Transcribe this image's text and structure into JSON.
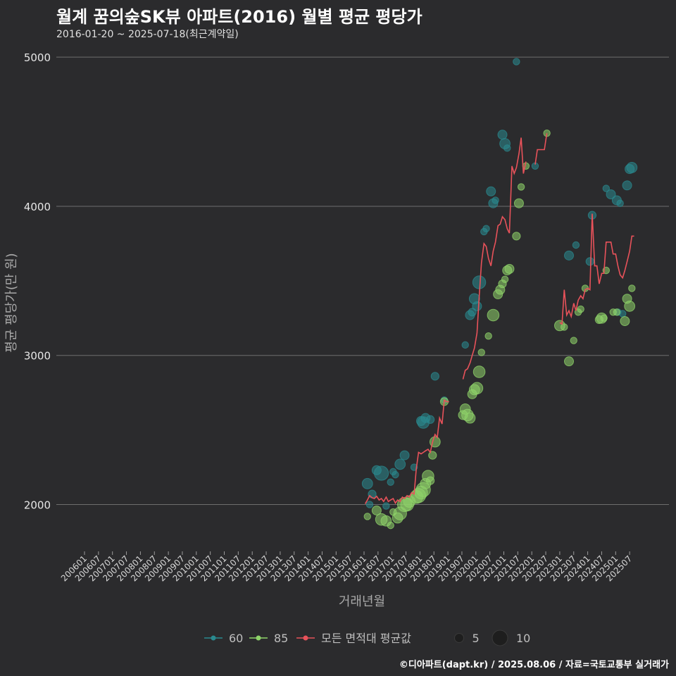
{
  "header": {
    "title": "월계 꿈의숲SK뷰 아파트(2016) 월별 평균 평당가",
    "subtitle": "2016-01-20 ~ 2025-07-18(최근계약일)"
  },
  "caption": "©디아파트(dapt.kr) / 2025.08.06 / 자료=국토교통부 실거래가",
  "colors": {
    "s60": "#2a8a8f",
    "s85": "#8fd46a",
    "avg": "#e8525a"
  },
  "chart_data": {
    "type": "line+scatter",
    "xlabel": "거래년월",
    "ylabel": "평균 평당가(만 원)",
    "ylim": [
      1700,
      5100
    ],
    "yticks": [
      2000,
      3000,
      4000,
      5000
    ],
    "xticks": [
      "200601",
      "200607",
      "200701",
      "200707",
      "200801",
      "200807",
      "200901",
      "200907",
      "201001",
      "201007",
      "201101",
      "201107",
      "201201",
      "201207",
      "201301",
      "201307",
      "201401",
      "201407",
      "201501",
      "201507",
      "201601",
      "201607",
      "201701",
      "201707",
      "201801",
      "201807",
      "201901",
      "201907",
      "202001",
      "202007",
      "202101",
      "202107",
      "202201",
      "202207",
      "202301",
      "202307",
      "202401",
      "202407",
      "202501",
      "202507"
    ],
    "legend": {
      "series": [
        {
          "key": "s60",
          "label": "60"
        },
        {
          "key": "s85",
          "label": "85"
        },
        {
          "key": "avg",
          "label": "모든 면적대 평균값"
        }
      ],
      "sizes": [
        {
          "label": "5",
          "size": 5
        },
        {
          "label": "10",
          "size": 10
        }
      ]
    },
    "average_line": [
      [
        [
          2016.04,
          2005
        ],
        [
          2016.12,
          2030
        ],
        [
          2016.2,
          2060
        ],
        [
          2016.29,
          2045
        ],
        [
          2016.37,
          2040
        ],
        [
          2016.45,
          2055
        ],
        [
          2016.54,
          2030
        ],
        [
          2016.62,
          2040
        ],
        [
          2016.7,
          2020
        ],
        [
          2016.79,
          2050
        ],
        [
          2016.87,
          2020
        ],
        [
          2016.95,
          2030
        ],
        [
          2017.04,
          2040
        ],
        [
          2017.12,
          2010
        ],
        [
          2017.2,
          2030
        ],
        [
          2017.29,
          2020
        ],
        [
          2017.37,
          2050
        ],
        [
          2017.45,
          2040
        ],
        [
          2017.54,
          2060
        ],
        [
          2017.62,
          2050
        ],
        [
          2017.7,
          2080
        ],
        [
          2017.79,
          2070
        ],
        [
          2017.87,
          2240
        ],
        [
          2017.95,
          2350
        ],
        [
          2018.04,
          2340
        ],
        [
          2018.12,
          2350
        ],
        [
          2018.2,
          2360
        ],
        [
          2018.29,
          2370
        ],
        [
          2018.37,
          2350
        ],
        [
          2018.45,
          2420
        ],
        [
          2018.54,
          2470
        ],
        [
          2018.62,
          2450
        ],
        [
          2018.7,
          2580
        ],
        [
          2018.79,
          2540
        ],
        [
          2018.87,
          2700
        ],
        [
          2018.95,
          2690
        ],
        [
          2019.04,
          2690
        ]
      ],
      [
        [
          2019.54,
          2840
        ],
        [
          2019.62,
          2900
        ],
        [
          2019.7,
          2910
        ],
        [
          2019.79,
          2950
        ],
        [
          2019.87,
          3000
        ],
        [
          2019.95,
          3050
        ],
        [
          2020.04,
          3150
        ],
        [
          2020.12,
          3400
        ],
        [
          2020.2,
          3620
        ],
        [
          2020.29,
          3750
        ],
        [
          2020.37,
          3730
        ],
        [
          2020.45,
          3650
        ],
        [
          2020.54,
          3600
        ],
        [
          2020.62,
          3700
        ],
        [
          2020.7,
          3760
        ],
        [
          2020.79,
          3870
        ],
        [
          2020.87,
          3880
        ],
        [
          2020.95,
          3930
        ],
        [
          2021.04,
          3910
        ],
        [
          2021.12,
          3850
        ],
        [
          2021.2,
          3820
        ],
        [
          2021.29,
          4270
        ],
        [
          2021.37,
          4220
        ],
        [
          2021.45,
          4260
        ],
        [
          2021.54,
          4350
        ],
        [
          2021.62,
          4460
        ],
        [
          2021.7,
          4220
        ],
        [
          2021.79,
          4300
        ]
      ],
      [
        [
          2022.12,
          4280
        ],
        [
          2022.2,
          4380
        ],
        [
          2022.29,
          4380
        ],
        [
          2022.37,
          4380
        ],
        [
          2022.45,
          4380
        ],
        [
          2022.54,
          4490
        ]
      ],
      [
        [
          2023.0,
          3220
        ],
        [
          2023.08,
          3210
        ],
        [
          2023.16,
          3440
        ],
        [
          2023.25,
          3270
        ],
        [
          2023.33,
          3300
        ],
        [
          2023.41,
          3260
        ],
        [
          2023.5,
          3350
        ],
        [
          2023.58,
          3300
        ],
        [
          2023.66,
          3370
        ],
        [
          2023.75,
          3400
        ],
        [
          2023.83,
          3380
        ],
        [
          2023.91,
          3440
        ],
        [
          2024.0,
          3450
        ],
        [
          2024.08,
          3440
        ],
        [
          2024.16,
          3950
        ],
        [
          2024.25,
          3600
        ],
        [
          2024.33,
          3600
        ],
        [
          2024.41,
          3480
        ],
        [
          2024.5,
          3550
        ],
        [
          2024.58,
          3550
        ],
        [
          2024.66,
          3760
        ],
        [
          2024.75,
          3760
        ],
        [
          2024.83,
          3760
        ],
        [
          2024.91,
          3680
        ],
        [
          2025.0,
          3680
        ],
        [
          2025.08,
          3600
        ],
        [
          2025.16,
          3540
        ],
        [
          2025.25,
          3520
        ],
        [
          2025.33,
          3570
        ],
        [
          2025.41,
          3630
        ],
        [
          2025.5,
          3700
        ],
        [
          2025.58,
          3800
        ],
        [
          2025.66,
          3800
        ]
      ]
    ],
    "points_60": [
      [
        2016.12,
        2140,
        6
      ],
      [
        2016.2,
        2000,
        3
      ],
      [
        2016.29,
        2070,
        4
      ],
      [
        2016.45,
        2230,
        5
      ],
      [
        2016.62,
        2210,
        9
      ],
      [
        2016.79,
        1990,
        3
      ],
      [
        2016.95,
        2150,
        3
      ],
      [
        2017.04,
        2220,
        3
      ],
      [
        2017.12,
        2200,
        3
      ],
      [
        2017.29,
        2270,
        6
      ],
      [
        2017.45,
        2330,
        5
      ],
      [
        2017.79,
        2250,
        3
      ],
      [
        2018.04,
        2560,
        5
      ],
      [
        2018.12,
        2550,
        7
      ],
      [
        2018.2,
        2580,
        5
      ],
      [
        2018.37,
        2570,
        4
      ],
      [
        2018.54,
        2860,
        4
      ],
      [
        2018.87,
        2700,
        3
      ],
      [
        2019.62,
        3070,
        3
      ],
      [
        2019.79,
        3270,
        5
      ],
      [
        2019.87,
        3290,
        4
      ],
      [
        2019.95,
        3380,
        6
      ],
      [
        2020.04,
        3330,
        5
      ],
      [
        2020.12,
        3490,
        8
      ],
      [
        2020.29,
        3830,
        3
      ],
      [
        2020.37,
        3850,
        3
      ],
      [
        2020.54,
        4100,
        5
      ],
      [
        2020.62,
        4020,
        5
      ],
      [
        2020.7,
        4040,
        3
      ],
      [
        2020.95,
        4480,
        5
      ],
      [
        2021.04,
        4420,
        6
      ],
      [
        2021.12,
        4390,
        3
      ],
      [
        2021.45,
        4970,
        3
      ],
      [
        2022.12,
        4270,
        3
      ],
      [
        2023.33,
        3670,
        5
      ],
      [
        2023.58,
        3740,
        3
      ],
      [
        2024.08,
        3630,
        4
      ],
      [
        2024.16,
        3940,
        4
      ],
      [
        2024.66,
        4120,
        3
      ],
      [
        2024.83,
        4080,
        5
      ],
      [
        2025.04,
        4040,
        5
      ],
      [
        2025.16,
        4020,
        3
      ],
      [
        2025.41,
        4140,
        5
      ],
      [
        2025.5,
        4250,
        5
      ],
      [
        2025.58,
        4260,
        6
      ],
      [
        2025.08,
        3290,
        3
      ],
      [
        2025.25,
        3280,
        3
      ]
    ],
    "points_85": [
      [
        2016.12,
        1920,
        3
      ],
      [
        2016.45,
        1960,
        5
      ],
      [
        2016.62,
        1900,
        7
      ],
      [
        2016.79,
        1890,
        6
      ],
      [
        2016.95,
        1860,
        3
      ],
      [
        2017.04,
        1950,
        3
      ],
      [
        2017.2,
        1910,
        6
      ],
      [
        2017.29,
        1940,
        8
      ],
      [
        2017.45,
        2000,
        9
      ],
      [
        2017.54,
        2000,
        8
      ],
      [
        2017.62,
        2020,
        7
      ],
      [
        2017.87,
        2050,
        8
      ],
      [
        2017.95,
        2060,
        9
      ],
      [
        2018.04,
        2080,
        8
      ],
      [
        2018.12,
        2100,
        9
      ],
      [
        2018.2,
        2140,
        6
      ],
      [
        2018.29,
        2190,
        7
      ],
      [
        2018.37,
        2160,
        4
      ],
      [
        2018.45,
        2330,
        4
      ],
      [
        2018.54,
        2420,
        6
      ],
      [
        2018.87,
        2690,
        4
      ],
      [
        2019.54,
        2600,
        5
      ],
      [
        2019.62,
        2640,
        6
      ],
      [
        2019.7,
        2600,
        7
      ],
      [
        2019.79,
        2580,
        6
      ],
      [
        2019.87,
        2740,
        5
      ],
      [
        2019.95,
        2770,
        6
      ],
      [
        2020.04,
        2780,
        7
      ],
      [
        2020.12,
        2890,
        7
      ],
      [
        2020.2,
        3020,
        3
      ],
      [
        2020.45,
        3130,
        3
      ],
      [
        2020.62,
        3270,
        7
      ],
      [
        2020.79,
        3410,
        5
      ],
      [
        2020.87,
        3440,
        5
      ],
      [
        2020.95,
        3480,
        4
      ],
      [
        2021.04,
        3510,
        3
      ],
      [
        2021.12,
        3570,
        5
      ],
      [
        2021.2,
        3580,
        5
      ],
      [
        2021.45,
        3800,
        4
      ],
      [
        2021.54,
        4020,
        5
      ],
      [
        2021.62,
        4130,
        3
      ],
      [
        2021.79,
        4270,
        3
      ],
      [
        2022.54,
        4490,
        3
      ],
      [
        2023.0,
        3200,
        6
      ],
      [
        2023.16,
        3190,
        3
      ],
      [
        2023.33,
        2960,
        5
      ],
      [
        2023.5,
        3100,
        3
      ],
      [
        2023.66,
        3290,
        3
      ],
      [
        2023.75,
        3310,
        3
      ],
      [
        2023.91,
        3450,
        3
      ],
      [
        2024.41,
        3240,
        4
      ],
      [
        2024.5,
        3250,
        6
      ],
      [
        2024.58,
        3250,
        3
      ],
      [
        2024.66,
        3570,
        3
      ],
      [
        2024.91,
        3290,
        3
      ],
      [
        2025.04,
        3290,
        3
      ],
      [
        2025.33,
        3230,
        5
      ],
      [
        2025.41,
        3380,
        5
      ],
      [
        2025.5,
        3330,
        6
      ],
      [
        2025.58,
        3450,
        3
      ]
    ]
  }
}
